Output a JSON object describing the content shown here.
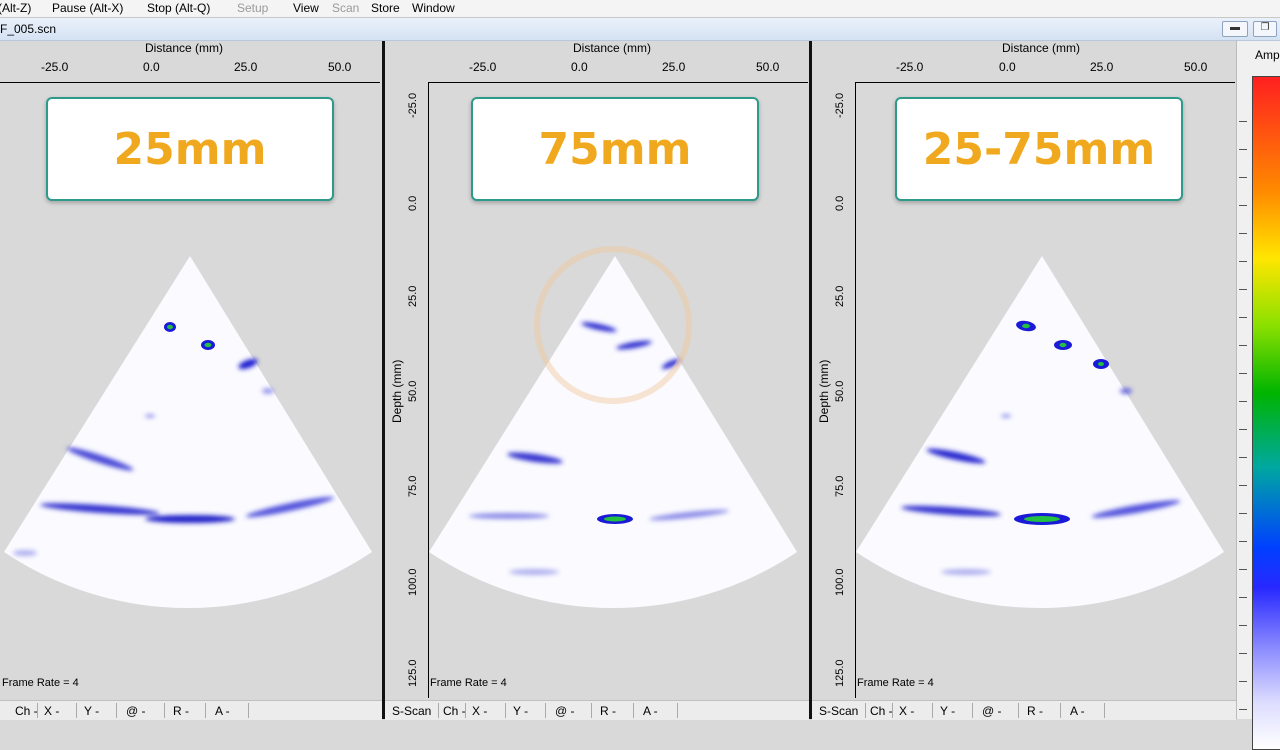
{
  "menu": {
    "undo_label": "(Alt-Z)",
    "pause_label": "Pause (Alt-X)",
    "stop_label": "Stop (Alt-Q)",
    "setup_label": "Setup",
    "view_label": "View",
    "scan_label": "Scan",
    "store_label": "Store",
    "window_label": "Window"
  },
  "document": {
    "title": "F_005.scn"
  },
  "panes": [
    {
      "card_label": "25mm",
      "x_axis_title": "Distance  (mm)",
      "x_ticks": [
        "-25.0",
        "0.0",
        "25.0",
        "50.0"
      ],
      "frame_rate": "Frame Rate = 4",
      "status": {
        "mode": "",
        "ch": "Ch -",
        "x": "X -",
        "y": "Y -",
        "at": "@ -",
        "r": "R -",
        "a": "A -"
      }
    },
    {
      "card_label": "75mm",
      "x_axis_title": "Distance  (mm)",
      "x_ticks": [
        "-25.0",
        "0.0",
        "25.0",
        "50.0"
      ],
      "y_axis_title": "Depth (mm)",
      "y_ticks": [
        "-25.0",
        "0.0",
        "25.0",
        "50.0",
        "75.0",
        "100.0",
        "125.0"
      ],
      "frame_rate": "Frame Rate = 4",
      "status": {
        "mode": "S-Scan",
        "ch": "Ch -",
        "x": "X -",
        "y": "Y -",
        "at": "@ -",
        "r": "R -",
        "a": "A -"
      }
    },
    {
      "card_label": "25-75mm",
      "x_axis_title": "Distance  (mm)",
      "x_ticks": [
        "-25.0",
        "0.0",
        "25.0",
        "50.0"
      ],
      "y_axis_title": "Depth (mm)",
      "y_ticks": [
        "-25.0",
        "0.0",
        "25.0",
        "50.0",
        "75.0",
        "100.0",
        "125.0"
      ],
      "frame_rate": "Frame Rate = 4",
      "status": {
        "mode": "S-Scan",
        "ch": "Ch -",
        "x": "X -",
        "y": "Y -",
        "at": "@ -",
        "r": "R -",
        "a": "A -"
      }
    }
  ],
  "colorbar": {
    "label": "Amp"
  },
  "colors": {
    "card_text": "#f0a91f",
    "card_border": "#2e9a8a",
    "echo_blue": "#1a1ad8",
    "echo_green": "#22c040"
  }
}
